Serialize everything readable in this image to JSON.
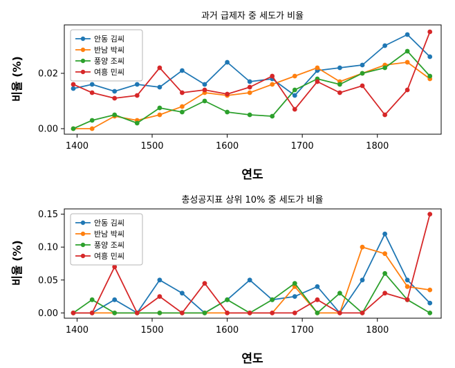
{
  "figure": {
    "background": "#ffffff"
  },
  "chart_data": [
    {
      "type": "line",
      "title": "과거 급제자 중 세도가 비율",
      "xlabel": "연도",
      "ylabel": "비율 (%)",
      "grid": false,
      "legend_position": "upper left",
      "xlim": [
        1383,
        1885
      ],
      "ylim": [
        -0.002,
        0.0375
      ],
      "xticks": [
        1400,
        1500,
        1600,
        1700,
        1800
      ],
      "yticks": [
        0.0,
        0.02
      ],
      "ytick_decimals": 2,
      "x": [
        1395,
        1420,
        1450,
        1480,
        1510,
        1540,
        1570,
        1600,
        1630,
        1660,
        1690,
        1720,
        1750,
        1780,
        1810,
        1840,
        1870
      ],
      "series": [
        {
          "name": "안동 김씨",
          "color": "#1f77b4",
          "values": [
            0.0145,
            0.016,
            0.0135,
            0.016,
            0.015,
            0.021,
            0.016,
            0.024,
            0.017,
            0.018,
            0.012,
            0.021,
            0.022,
            0.023,
            0.03,
            0.034,
            0.026
          ]
        },
        {
          "name": "반남 박씨",
          "color": "#ff7f0e",
          "values": [
            0.0,
            0.0,
            0.0045,
            0.003,
            0.005,
            0.008,
            0.013,
            0.012,
            0.013,
            0.016,
            0.019,
            0.022,
            0.017,
            0.02,
            0.023,
            0.024,
            0.018
          ]
        },
        {
          "name": "풍양 조씨",
          "color": "#2ca02c",
          "values": [
            0.0,
            0.003,
            0.005,
            0.002,
            0.0075,
            0.006,
            0.01,
            0.006,
            0.005,
            0.0045,
            0.014,
            0.018,
            0.016,
            0.02,
            0.022,
            0.028,
            0.019
          ]
        },
        {
          "name": "여흥 민씨",
          "color": "#d62728",
          "values": [
            0.016,
            0.013,
            0.011,
            0.012,
            0.022,
            0.013,
            0.014,
            0.0125,
            0.015,
            0.019,
            0.007,
            0.017,
            0.013,
            0.0155,
            0.005,
            0.014,
            0.035
          ]
        }
      ]
    },
    {
      "type": "line",
      "title": "총성공지표 상위 10% 중 세도가 비율",
      "xlabel": "연도",
      "ylabel": "비율 (%)",
      "grid": false,
      "legend_position": "upper left",
      "xlim": [
        1383,
        1885
      ],
      "ylim": [
        -0.008,
        0.158
      ],
      "xticks": [
        1400,
        1500,
        1600,
        1700,
        1800
      ],
      "yticks": [
        0.0,
        0.05,
        0.1,
        0.15
      ],
      "ytick_decimals": 2,
      "x": [
        1395,
        1420,
        1450,
        1480,
        1510,
        1540,
        1570,
        1600,
        1630,
        1660,
        1690,
        1720,
        1750,
        1780,
        1810,
        1840,
        1870
      ],
      "series": [
        {
          "name": "안동 김씨",
          "color": "#1f77b4",
          "values": [
            0.0,
            0.0,
            0.02,
            0.0,
            0.05,
            0.03,
            0.0,
            0.02,
            0.05,
            0.02,
            0.025,
            0.04,
            0.0,
            0.05,
            0.12,
            0.05,
            0.015
          ]
        },
        {
          "name": "반남 박씨",
          "color": "#ff7f0e",
          "values": [
            0.0,
            0.0,
            0.0,
            0.0,
            0.0,
            0.0,
            0.0,
            0.0,
            0.0,
            0.0,
            0.04,
            0.0,
            0.0,
            0.1,
            0.09,
            0.04,
            0.035
          ]
        },
        {
          "name": "풍양 조씨",
          "color": "#2ca02c",
          "values": [
            0.0,
            0.02,
            0.0,
            0.0,
            0.0,
            0.0,
            0.0,
            0.02,
            0.0,
            0.02,
            0.045,
            0.0,
            0.03,
            0.0,
            0.06,
            0.02,
            0.0
          ]
        },
        {
          "name": "여흥 민씨",
          "color": "#d62728",
          "values": [
            0.0,
            0.0,
            0.07,
            0.0,
            0.025,
            0.0,
            0.045,
            0.0,
            0.0,
            0.0,
            0.0,
            0.02,
            0.0,
            0.0,
            0.03,
            0.02,
            0.15
          ]
        }
      ]
    }
  ]
}
